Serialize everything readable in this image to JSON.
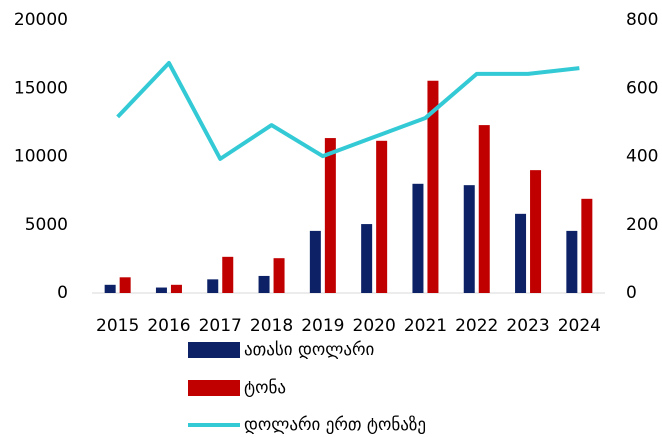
{
  "chart_data": {
    "type": "bar_line",
    "categories": [
      "2015",
      "2016",
      "2017",
      "2018",
      "2019",
      "2020",
      "2021",
      "2022",
      "2023",
      "2024"
    ],
    "series": [
      {
        "name": "ათასი დოლარი",
        "color": "#0d2266",
        "type": "bar",
        "values": [
          600,
          400,
          1000,
          1250,
          4550,
          5050,
          8000,
          7900,
          5800,
          4550
        ]
      },
      {
        "name": "ტონა",
        "color": "#c00000",
        "type": "bar",
        "values": [
          1150,
          600,
          2650,
          2550,
          11350,
          11150,
          15550,
          12300,
          9000,
          6900
        ]
      },
      {
        "name": "დოლარი ერთ ტონაზე",
        "color": "#33cad6",
        "type": "line",
        "axis": "y2",
        "values": [
          516,
          674,
          393,
          492,
          401,
          457,
          513,
          642,
          642,
          659
        ]
      }
    ],
    "ylim": [
      0,
      20000
    ],
    "yticks": [
      0,
      5000,
      10000,
      15000,
      20000
    ],
    "y2lim": [
      0,
      800
    ],
    "y2ticks": [
      0,
      200,
      400,
      600,
      800
    ],
    "grid": false
  }
}
